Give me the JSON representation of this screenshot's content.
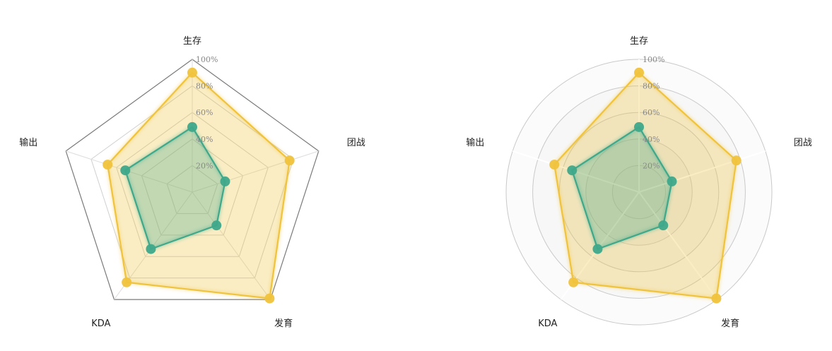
{
  "chart_data": [
    {
      "type": "radar",
      "shape": "polygon",
      "indicators": [
        "生存",
        "团战",
        "发育",
        "KDA",
        "输出"
      ],
      "ticks": [
        "20%",
        "40%",
        "60%",
        "80%",
        "100%"
      ],
      "max": 100,
      "series": [
        {
          "values": [
            90,
            77,
            99,
            84,
            67
          ],
          "color": "#f0c33c"
        },
        {
          "values": [
            49,
            26,
            31,
            53,
            53
          ],
          "color": "#3fa88a"
        }
      ]
    },
    {
      "type": "radar",
      "shape": "circle",
      "indicators": [
        "生存",
        "团战",
        "发育",
        "KDA",
        "输出"
      ],
      "ticks": [
        "20%",
        "40%",
        "60%",
        "80%",
        "100%"
      ],
      "max": 100,
      "series": [
        {
          "values": [
            90,
            77,
            99,
            84,
            67
          ],
          "color": "#f0c33c"
        },
        {
          "values": [
            49,
            26,
            31,
            53,
            53
          ],
          "color": "#3fa88a"
        }
      ]
    }
  ]
}
